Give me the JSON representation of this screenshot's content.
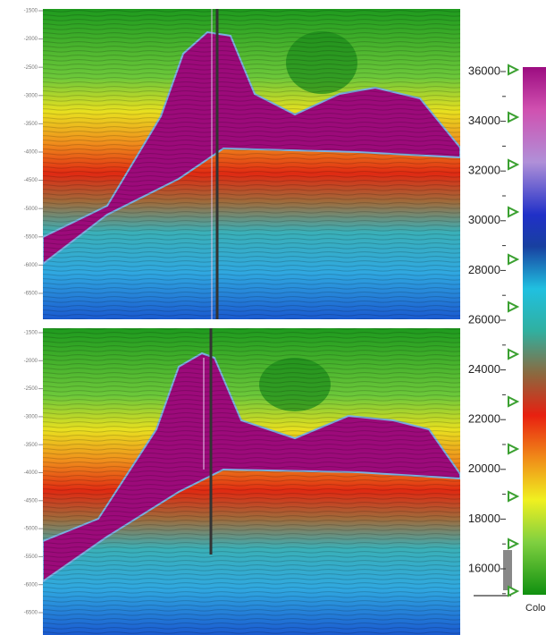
{
  "top_panel": {
    "depth_labels": [
      -1500,
      -2000,
      -2500,
      -3000,
      -3500,
      -4000,
      -4500,
      -5000,
      -5500,
      -6000,
      -6500
    ]
  },
  "bottom_panel": {
    "depth_labels": [
      -1500,
      -2000,
      -2500,
      -3000,
      -3500,
      -4000,
      -4500,
      -5000,
      -5500,
      -6000,
      -6500
    ]
  },
  "colorbar": {
    "ticks": [
      36000,
      34000,
      32000,
      30000,
      28000,
      26000,
      24000,
      22000,
      20000,
      18000,
      16000
    ],
    "label": "Colo"
  }
}
